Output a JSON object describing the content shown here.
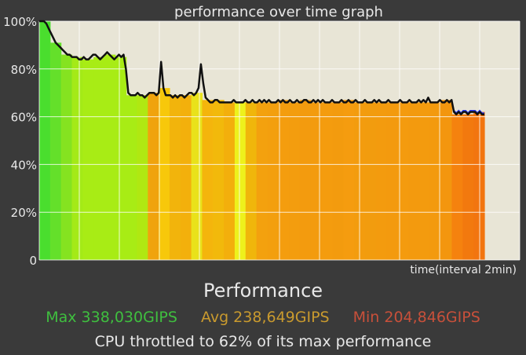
{
  "chart_data": {
    "type": "line",
    "title": "performance over time graph",
    "xlabel": "time(interval 2min)",
    "ylabel": "",
    "ylim": [
      0,
      100
    ],
    "y_ticks": [
      "0",
      "20%",
      "40%",
      "60%",
      "80%",
      "100%"
    ],
    "grid": true,
    "series": [
      {
        "values": [
          100,
          100,
          100,
          99,
          97,
          95,
          93,
          91,
          90,
          89,
          88,
          87,
          86,
          86,
          85,
          85,
          85,
          84,
          84,
          85,
          84,
          84,
          85,
          86,
          86,
          85,
          84,
          85,
          86,
          87,
          86,
          85,
          84,
          85,
          86,
          85,
          86,
          80,
          70,
          69,
          69,
          69,
          70,
          69,
          69,
          68,
          69,
          70,
          70,
          70,
          69,
          70,
          83,
          72,
          69,
          69,
          69,
          68,
          69,
          68,
          69,
          69,
          68,
          69,
          70,
          70,
          69,
          70,
          72,
          82,
          74,
          68,
          67,
          66,
          66,
          67,
          67,
          66,
          66,
          66,
          66,
          66,
          66,
          67,
          66,
          66,
          66,
          66,
          67,
          66,
          66,
          67,
          66,
          66,
          67,
          66,
          67,
          66,
          67,
          66,
          66,
          66,
          67,
          66,
          67,
          66,
          66,
          67,
          66,
          66,
          67,
          66,
          66,
          67,
          67,
          66,
          66,
          67,
          66,
          67,
          66,
          67,
          66,
          66,
          66,
          67,
          66,
          66,
          66,
          67,
          66,
          66,
          67,
          66,
          66,
          67,
          66,
          66,
          66,
          67,
          66,
          66,
          66,
          67,
          66,
          67,
          66,
          66,
          66,
          67,
          66,
          66,
          66,
          66,
          67,
          66,
          66,
          66,
          67,
          66,
          66,
          66,
          67,
          66,
          67,
          66,
          68,
          66,
          66,
          66,
          66,
          67,
          66,
          66,
          67,
          66,
          67,
          62,
          61,
          62,
          61,
          62,
          62,
          61,
          62,
          62,
          62,
          61,
          62,
          61,
          61
        ]
      }
    ],
    "bar_colors": [
      "#4ade2e",
      "#64e02a",
      "#85e320",
      "#a4ea17",
      "#a8ec15",
      "#a8ec15",
      "#a8ec15",
      "#a8ec15",
      "#a8ec15",
      "#b0e812",
      "#f0a30d",
      "#f7c80b",
      "#f2b40c",
      "#f3b00c",
      "#e9e21a",
      "#f4b50c",
      "#f2b90b",
      "#f3af0c",
      "#eef11c",
      "#f0b60b",
      "#f3a10e",
      "#f39f0e",
      "#f49d0e",
      "#f39d0e",
      "#f39b0e",
      "#f39b0e",
      "#f49c0e",
      "#f39b0e",
      "#f59c0f",
      "#f39c0e",
      "#f29c0e",
      "#f39b0e",
      "#f39a0e",
      "#f49b0e",
      "#f39a0e",
      "#f39b0e",
      "#f39a0e",
      "#f3960e",
      "#f5820e",
      "#f2790e",
      "#f2750f"
    ]
  },
  "stats": {
    "heading": "Performance",
    "max": "Max 338,030GIPS",
    "avg": "Avg 238,649GIPS",
    "min": "Min 204,846GIPS",
    "throttle": "CPU throttled to 62% of its max performance"
  },
  "colors": {
    "plot_bg": "#e8e5d6",
    "grid": "#ffffff",
    "line": "#111111",
    "max": "#3fbf3f",
    "avg": "#c99a2e",
    "min": "#c8503a"
  }
}
